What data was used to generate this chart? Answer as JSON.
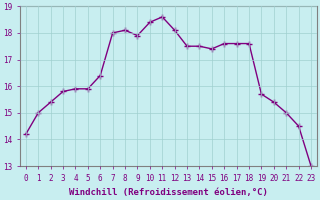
{
  "x": [
    0,
    1,
    2,
    3,
    4,
    5,
    6,
    7,
    8,
    9,
    10,
    11,
    12,
    13,
    14,
    15,
    16,
    17,
    18,
    19,
    20,
    21,
    22,
    23
  ],
  "y": [
    14.2,
    15.0,
    15.4,
    15.8,
    15.9,
    15.9,
    16.4,
    18.0,
    18.1,
    17.9,
    18.4,
    18.6,
    18.1,
    17.5,
    17.5,
    17.4,
    17.6,
    17.6,
    17.6,
    15.7,
    15.4,
    15.0,
    14.5,
    13.0
  ],
  "line_color": "#800080",
  "marker": "+",
  "marker_size": 4,
  "bg_color": "#c8eef0",
  "grid_color": "#a0d0d0",
  "xlabel": "Windchill (Refroidissement éolien,°C)",
  "ylim": [
    13,
    19
  ],
  "xlim_min": -0.5,
  "xlim_max": 23.5,
  "yticks": [
    13,
    14,
    15,
    16,
    17,
    18,
    19
  ],
  "xticks": [
    0,
    1,
    2,
    3,
    4,
    5,
    6,
    7,
    8,
    9,
    10,
    11,
    12,
    13,
    14,
    15,
    16,
    17,
    18,
    19,
    20,
    21,
    22,
    23
  ],
  "xlabel_fontsize": 6.5,
  "tick_fontsize": 5.5,
  "line_width": 1.0,
  "spine_color": "#808080"
}
